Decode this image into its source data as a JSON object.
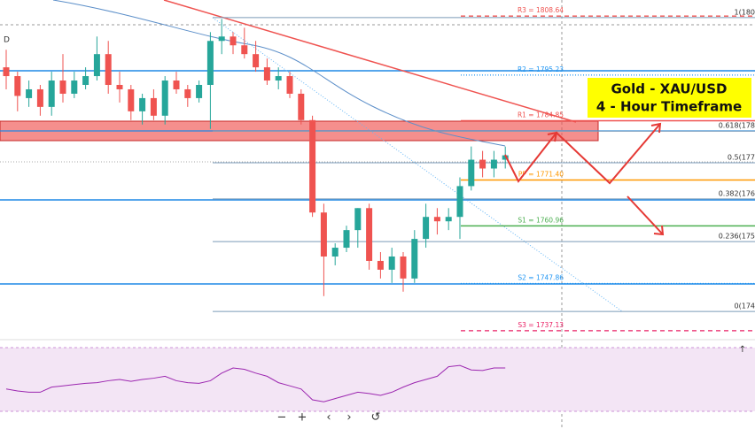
{
  "chart_data": {
    "type": "candlestick",
    "marker": "D",
    "ylim": [
      1735.3,
      1812.3
    ],
    "up_color": "#26a69a",
    "down_color": "#ef5350",
    "open": [
      1797,
      1795,
      1790,
      1792,
      1788,
      1794,
      1791,
      1793,
      1795,
      1800,
      1793,
      1792,
      1787,
      1790,
      1786,
      1794,
      1792,
      1790,
      1793,
      1803,
      1804,
      1802,
      1800,
      1797,
      1794,
      1795,
      1791,
      1785,
      1764,
      1754,
      1756,
      1760,
      1765,
      1753,
      1751,
      1754,
      1749,
      1758,
      1763,
      1762,
      1763,
      1770,
      1776,
      1774,
      1776
    ],
    "high": [
      1801,
      1796,
      1794,
      1793,
      1796,
      1800,
      1796,
      1797,
      1804,
      1803,
      1796,
      1793,
      1791,
      1792,
      1795,
      1796,
      1793,
      1794,
      1805,
      1808,
      1805,
      1806,
      1803,
      1799,
      1797,
      1796,
      1792,
      1786,
      1766,
      1757,
      1761,
      1765,
      1766,
      1755,
      1756,
      1755,
      1760,
      1766,
      1765,
      1765,
      1772,
      1779,
      1778,
      1778,
      1779
    ],
    "low": [
      1792,
      1787,
      1788,
      1786,
      1786,
      1789,
      1790,
      1792,
      1794,
      1791,
      1789,
      1785,
      1784,
      1785,
      1784,
      1791,
      1788,
      1789,
      1783,
      1800,
      1800,
      1799,
      1796,
      1793,
      1792,
      1790,
      1784,
      1763,
      1745,
      1752,
      1755,
      1756,
      1751,
      1749,
      1748,
      1746,
      1748,
      1756,
      1759,
      1760,
      1758,
      1769,
      1772,
      1772,
      1774
    ],
    "close": [
      1795,
      1790.5,
      1792,
      1788,
      1794,
      1791,
      1794,
      1795,
      1800,
      1793,
      1792,
      1787,
      1790,
      1786,
      1794,
      1792,
      1790,
      1793,
      1803,
      1804,
      1802,
      1800,
      1797,
      1794,
      1795,
      1791,
      1785,
      1764,
      1754,
      1756,
      1760,
      1765,
      1753,
      1751,
      1754,
      1749,
      1758,
      1763,
      1762,
      1763,
      1770,
      1776,
      1774,
      1776,
      1777
    ],
    "pivots": [
      {
        "label": "R3 = 1808.64",
        "value": 1808.64,
        "color": "#ef5350",
        "style": "dashed"
      },
      {
        "label": "R2 = 1795.23",
        "value": 1795.23,
        "color": "#2196f3",
        "style": "dotted"
      },
      {
        "label": "R1 = 1784.85",
        "value": 1784.85,
        "color": "#ef5350",
        "style": "solid"
      },
      {
        "label": "PP = 1771.40",
        "value": 1771.4,
        "color": "#ff9800",
        "style": "solid"
      },
      {
        "label": "S1 = 1760.96",
        "value": 1760.96,
        "color": "#4caf50",
        "style": "solid"
      },
      {
        "label": "S2 = 1747.86",
        "value": 1747.86,
        "color": "#2196f3",
        "style": "dotted"
      },
      {
        "label": "S3 = 1737.13",
        "value": 1737.13,
        "color": "#e91e63",
        "style": "dashed"
      }
    ],
    "fib_levels": [
      {
        "label": "1(180",
        "value": 1808.3
      },
      {
        "label": "0.618(178",
        "value": 1782.5
      },
      {
        "label": "0.5(177",
        "value": 1775.3
      },
      {
        "label": "0.382(176",
        "value": 1767.1
      },
      {
        "label": "0.236(175",
        "value": 1757.4
      },
      {
        "label": "0(174",
        "value": 1741.5
      }
    ],
    "annotation": [
      "Gold - XAU/USD",
      "4 - Hour Timeframe"
    ],
    "rsi": {
      "color": "#9c27b0",
      "ylim": [
        0,
        100
      ],
      "values": [
        35,
        32,
        30,
        30,
        38,
        40,
        42,
        44,
        45,
        48,
        50,
        47,
        50,
        52,
        55,
        48,
        45,
        44,
        48,
        60,
        68,
        66,
        60,
        55,
        45,
        40,
        35,
        18,
        15,
        20,
        25,
        30,
        28,
        25,
        30,
        38,
        45,
        50,
        55,
        70,
        72,
        65,
        64,
        68,
        68
      ]
    },
    "toolbar": [
      "−",
      "+",
      "‹",
      "›",
      "↺",
      "↑"
    ]
  }
}
